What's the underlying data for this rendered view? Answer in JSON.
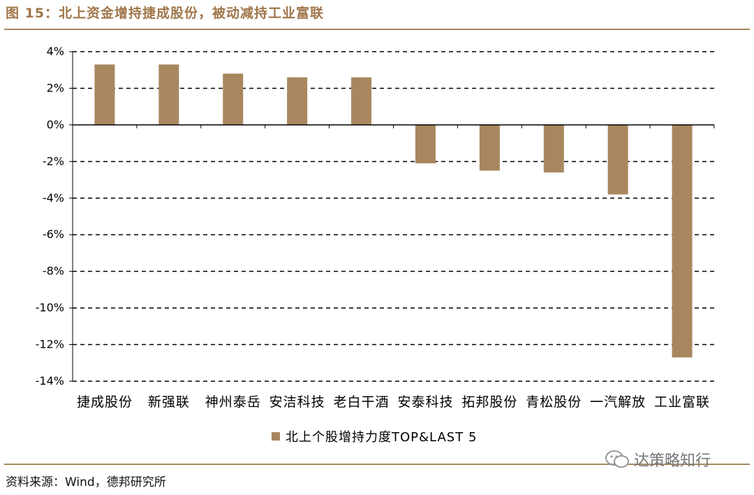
{
  "header": {
    "title": "图 15：北上资金增持捷成股份，被动减持工业富联"
  },
  "footer": {
    "source": "资料来源：Wind，德邦研究所",
    "watermark": "达策略知行"
  },
  "chart_data": {
    "type": "bar",
    "categories": [
      "捷成股份",
      "新强联",
      "神州泰岳",
      "安洁科技",
      "老白干酒",
      "安泰科技",
      "拓邦股份",
      "青松股份",
      "一汽解放",
      "工业富联"
    ],
    "series": [
      {
        "name": "北上个股增持力度TOP&LAST 5",
        "values": [
          3.3,
          3.3,
          2.8,
          2.6,
          2.6,
          -2.1,
          -2.5,
          -2.6,
          -3.8,
          -12.7
        ],
        "color": "#a88760"
      }
    ],
    "ylim": [
      -14,
      4
    ],
    "yticks": [
      4,
      2,
      0,
      -2,
      -4,
      -6,
      -8,
      -10,
      -12,
      -14
    ],
    "ytick_labels": [
      "4%",
      "2%",
      "0%",
      "-2%",
      "-4%",
      "-6%",
      "-8%",
      "-10%",
      "-12%",
      "-14%"
    ],
    "grid": true,
    "legend_position": "bottom"
  }
}
